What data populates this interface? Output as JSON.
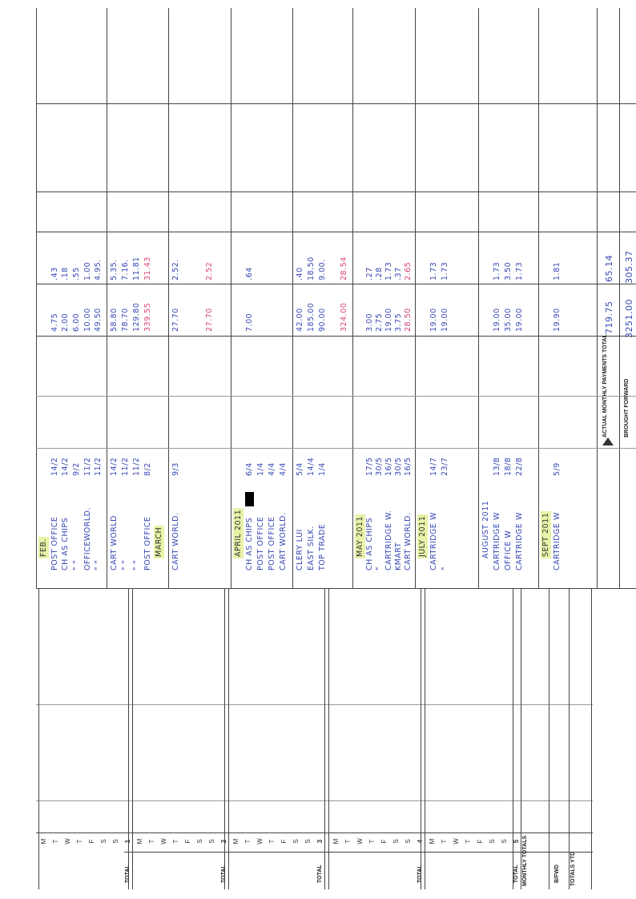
{
  "day_grid": {
    "day_letters": [
      "M",
      "T",
      "W",
      "T",
      "F",
      "S",
      "S"
    ],
    "weeks": [
      "1",
      "2",
      "3",
      "4",
      "5"
    ],
    "total_label": "TOTAL",
    "monthly_totals_label": "MONTHLY TOTALS",
    "bfwd_label": "B/FWD",
    "totals_ytd_label": "TOTALS YTD"
  },
  "entries": [
    {
      "lines": [
        {
          "date": "",
          "desc": "FEB.",
          "month": true
        },
        {
          "date": "14/2",
          "desc": "POST OFFICE",
          "amount": "4.75",
          "vat": ".43"
        },
        {
          "date": "14/2",
          "desc": "CH AS CHIPS",
          "amount": "2.00",
          "vat": ".18"
        },
        {
          "date": "9/2",
          "desc": "\"   \"",
          "amount": "6.00",
          "vat": ".55"
        },
        {
          "date": "11/2",
          "desc": "OFFICEWORLD.",
          "amount": "10.00",
          "vat": "1.00"
        },
        {
          "date": "11/2",
          "desc": "\"   \"",
          "amount": "49.50",
          "vat": "4.95."
        }
      ]
    },
    {
      "lines": [
        {
          "date": "14/2",
          "desc": "CART WORLD",
          "amount": "58.80",
          "vat": "5.35."
        },
        {
          "date": "11/2",
          "desc": "\"   \"",
          "amount": "78.70",
          "vat": "7.16."
        },
        {
          "date": "11/2",
          "desc": "\"   \"",
          "amount": "129.80",
          "vat": "11.81"
        },
        {
          "date": "8/2",
          "desc": "POST OFFICE",
          "amount": "339.55",
          "vat": "31.43",
          "pink": true
        },
        {
          "date": "",
          "desc": "MARCH",
          "month": true
        }
      ]
    },
    {
      "lines": [
        {
          "date": "9/3",
          "desc": "CART WORLD.",
          "amount": "27.70",
          "vat": "2.52."
        },
        {
          "date": "",
          "desc": ""
        },
        {
          "date": "",
          "desc": ""
        },
        {
          "date": "",
          "desc": "",
          "amount": "27.70",
          "vat": "2.52",
          "pink": true
        }
      ]
    },
    {
      "lines": [
        {
          "date": "",
          "desc": "APRIL 2011",
          "month": true
        },
        {
          "date": "6/4",
          "desc": "CH AS CHIPS",
          "redacted": true,
          "amount": "7.00",
          "vat": ".64"
        },
        {
          "date": "1/4",
          "desc": "POST OFFICE"
        },
        {
          "date": "4/4",
          "desc": "POST OFFICE"
        },
        {
          "date": "4/4",
          "desc": "CART WORLD."
        }
      ]
    },
    {
      "lines": [
        {
          "date": "5/4",
          "desc": "CLERY LUI",
          "amount": "42.00",
          "vat": ".40"
        },
        {
          "date": "14/4",
          "desc": "EAST SILK.",
          "amount": "185.00",
          "vat": "18.50"
        },
        {
          "date": "1/4",
          "desc": "TOP TRADE",
          "amount": "90.00",
          "vat": "9.00."
        },
        {
          "date": "",
          "desc": ""
        },
        {
          "date": "",
          "desc": "",
          "amount": "324.00",
          "vat": "28.54",
          "pink": true
        }
      ]
    },
    {
      "lines": [
        {
          "date": "",
          "desc": "MAY 2011",
          "month": true
        },
        {
          "date": "17/5",
          "desc": "CH AS CHIPS",
          "amount": "3.00",
          "vat": ".27"
        },
        {
          "date": "30/5",
          "desc": "\"",
          "amount": "2.75",
          "vat": ".28"
        },
        {
          "date": "16/5",
          "desc": "CARTRIDGE W.",
          "amount": "19.00",
          "vat": "1.73"
        },
        {
          "date": "30/5",
          "desc": "KMART",
          "amount": "3.75",
          "vat": ".37"
        },
        {
          "date": "16/5",
          "desc": "CART WORLD.",
          "amount": "28.50",
          "vat": "2.65",
          "pink": true
        }
      ]
    },
    {
      "lines": [
        {
          "date": "",
          "desc": "JULY 2011",
          "month": true
        },
        {
          "date": "14/7",
          "desc": "CARTRIDGE W",
          "amount": "19.00",
          "vat": "1.73"
        },
        {
          "date": "23/7",
          "desc": "\"",
          "amount": "19.00",
          "vat": "1.73"
        }
      ]
    },
    {
      "lines": [
        {
          "date": "",
          "desc": "AUGUST 2011"
        },
        {
          "date": "13/8",
          "desc": "CARTRIDGE W",
          "amount": "19.00",
          "vat": "1.73"
        },
        {
          "date": "18/8",
          "desc": "OFFICE W",
          "amount": "35.00",
          "vat": "3.50"
        },
        {
          "date": "22/8",
          "desc": "CARTRIDGE W",
          "amount": "19.00",
          "vat": "1.73"
        }
      ]
    },
    {
      "lines": [
        {
          "date": "",
          "desc": "SEPT 2011",
          "month": true
        },
        {
          "date": "5/9",
          "desc": "CARTRIDGE W",
          "amount": "19.90",
          "vat": "1.81"
        }
      ]
    }
  ],
  "footer": {
    "actual_label": "ACTUAL MONTHLY PAYMENTS TOTAL",
    "actual_amount": "719.75",
    "actual_vat": "65.14",
    "brought_label": "BROUGHT FORWARD",
    "brought_amount": "3251.00",
    "brought_vat": "305.37",
    "arrow_icon": "up-arrow-icon"
  },
  "colors": {
    "ink_blue": "#3848b5",
    "ink_pink": "#d8457e",
    "highlighter": "#e8f2a8"
  }
}
